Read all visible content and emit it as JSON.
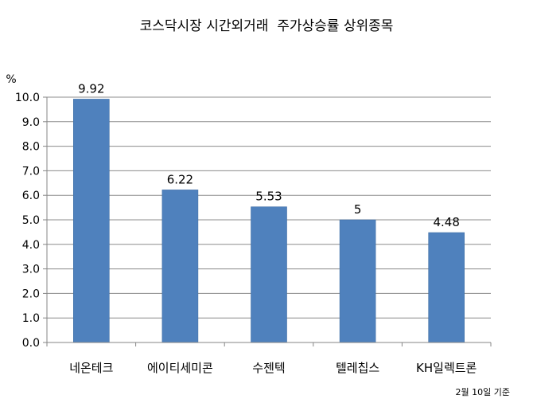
{
  "chart_data": {
    "type": "bar",
    "title": "코스닥시장 시간외거래  주가상승률 상위종목",
    "ylabel": "%",
    "xlabel": "",
    "categories": [
      "네온테크",
      "에이티세미콘",
      "수젠텍",
      "텔레칩스",
      "KH일렉트론"
    ],
    "values": [
      9.92,
      6.22,
      5.53,
      5,
      4.48
    ],
    "data_labels": [
      "9.92",
      "6.22",
      "5.53",
      "5",
      "4.48"
    ],
    "ylim": [
      0,
      10
    ],
    "yticks": [
      "0.0",
      "1.0",
      "2.0",
      "3.0",
      "4.0",
      "5.0",
      "6.0",
      "7.0",
      "8.0",
      "9.0",
      "10.0"
    ],
    "grid": true,
    "legend": "none",
    "bar_color": "#4f81bd",
    "note": "2월 10일 기준"
  }
}
